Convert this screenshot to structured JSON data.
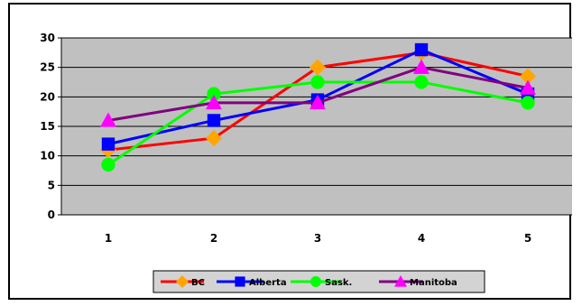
{
  "chart_data": {
    "type": "line",
    "title": "",
    "xlabel": "",
    "ylabel": "",
    "categories": [
      "1",
      "2",
      "3",
      "4",
      "5"
    ],
    "ylim": [
      0,
      30
    ],
    "yticks": [
      "0",
      "5",
      "10",
      "15",
      "20",
      "25",
      "30"
    ],
    "grid": true,
    "plot_background": "#c0c0c0",
    "legend_position": "bottom",
    "series": [
      {
        "name": "BC",
        "values": [
          11,
          13,
          25,
          27.5,
          23.5
        ],
        "color": "#ff0000",
        "marker_color": "#ffa500",
        "marker": "diamond"
      },
      {
        "name": "Alberta",
        "values": [
          12,
          16,
          19.5,
          28,
          20.5
        ],
        "color": "#0000ff",
        "marker_color": "#0000ff",
        "marker": "square"
      },
      {
        "name": "Sask.",
        "values": [
          8.5,
          20.5,
          22.5,
          22.5,
          19
        ],
        "color": "#00ff00",
        "marker_color": "#00ff00",
        "marker": "circle"
      },
      {
        "name": "Manitoba",
        "values": [
          16,
          19,
          19,
          25,
          21.5
        ],
        "color": "#800080",
        "marker_color": "#ff00ff",
        "marker": "triangle"
      }
    ]
  }
}
